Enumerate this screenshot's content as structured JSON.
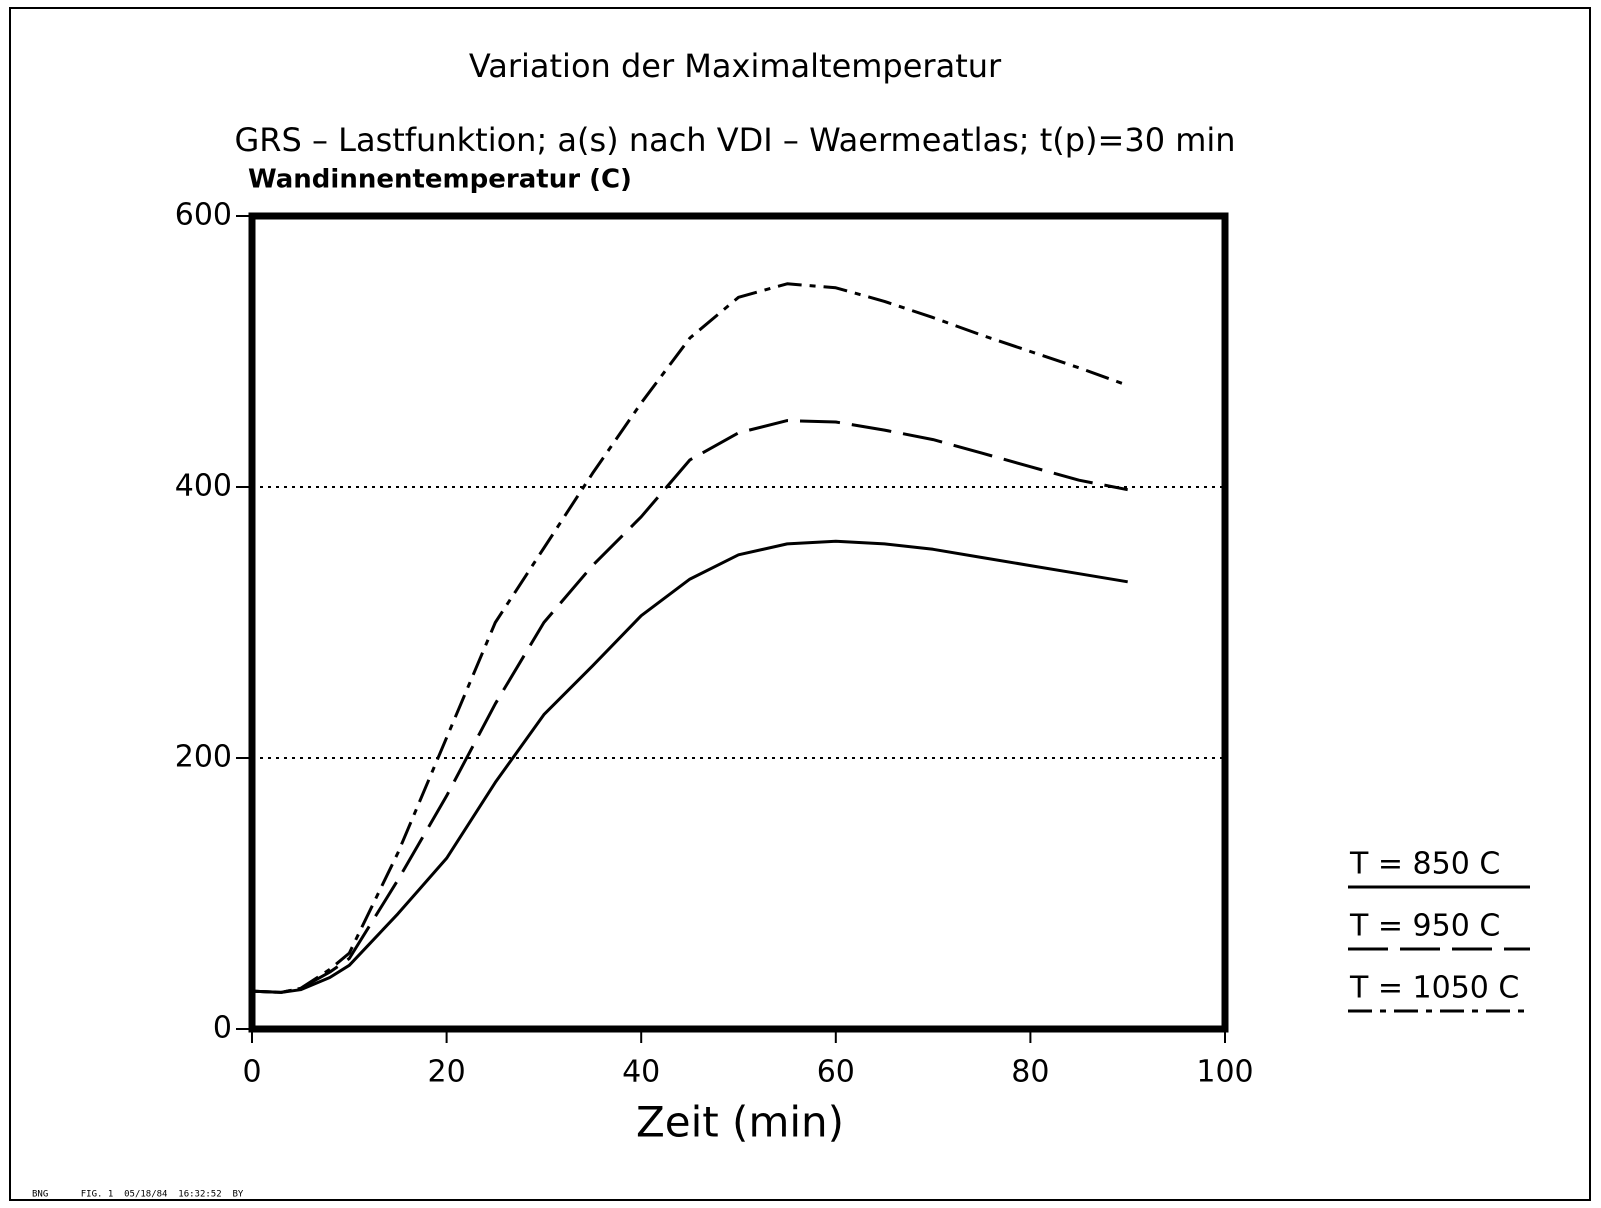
{
  "chart_data": {
    "type": "line",
    "title": "Variation der Maximaltemperatur",
    "subtitle": "GRS – Lastfunktion; a(s) nach VDI – Waermeatlas; t(p)=30 min",
    "y_label": "Wandinnentemperatur (C)",
    "x_label": "Zeit (min)",
    "footer": "BNG      FIG. 1  05/18/84  16:32:52  BY",
    "x": [
      0,
      3,
      5,
      8,
      10,
      15,
      20,
      25,
      30,
      35,
      40,
      45,
      50,
      55,
      60,
      65,
      70,
      75,
      80,
      85,
      90
    ],
    "series": [
      {
        "name": "T = 850 C",
        "color": "#000000",
        "dash": "solid",
        "values": [
          28,
          27,
          29,
          38,
          47,
          85,
          126,
          182,
          232,
          268,
          305,
          332,
          350,
          358,
          360,
          358,
          354,
          348,
          342,
          336,
          330
        ]
      },
      {
        "name": "T = 950 C",
        "color": "#000000",
        "dash": "dashed",
        "values": [
          28,
          27,
          30,
          42,
          52,
          110,
          172,
          240,
          300,
          342,
          378,
          420,
          440,
          449,
          448,
          442,
          435,
          425,
          415,
          405,
          398
        ]
      },
      {
        "name": "T = 1050 C",
        "color": "#000000",
        "dash": "dashdot",
        "values": [
          28,
          27,
          30,
          44,
          56,
          130,
          215,
          300,
          355,
          410,
          462,
          510,
          540,
          550,
          547,
          537,
          525,
          512,
          500,
          488,
          475
        ]
      }
    ],
    "xlim": [
      0,
      100
    ],
    "xticks": [
      0,
      20,
      40,
      60,
      80,
      100
    ],
    "ylim": [
      0,
      600
    ],
    "yticks": [
      0,
      200,
      400,
      600
    ],
    "grid": "dotted"
  }
}
